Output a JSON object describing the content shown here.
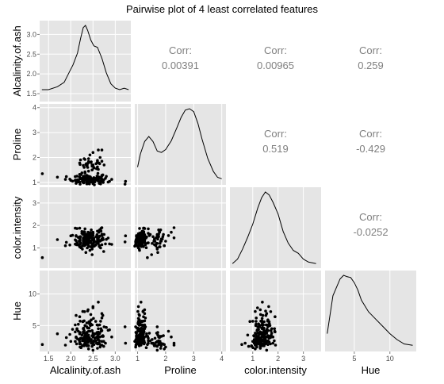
{
  "chart_data": {
    "type": "scatter",
    "title": "Pairwise plot of 4 least correlated features",
    "variables": [
      {
        "name": "Alcalinity.of.ash",
        "range": [
          1.3,
          3.35
        ],
        "ticks": [
          1.5,
          2.0,
          2.5,
          3.0
        ],
        "tick_labels": [
          "1.5",
          "2.0",
          "2.5",
          "3.0"
        ]
      },
      {
        "name": "Proline",
        "range": [
          0.9,
          4.15
        ],
        "ticks": [
          1,
          2,
          3,
          4
        ],
        "tick_labels": [
          "1",
          "2",
          "3",
          "4"
        ]
      },
      {
        "name": "color.intensity",
        "range": [
          0.1,
          3.7
        ],
        "ticks": [
          1,
          2,
          3
        ],
        "tick_labels": [
          "1",
          "2",
          "3"
        ]
      },
      {
        "name": "Hue",
        "range": [
          0.9,
          13.7
        ],
        "ticks": [
          5,
          10
        ],
        "tick_labels": [
          "5",
          "10"
        ]
      }
    ],
    "correlations": [
      {
        "row": 0,
        "col": 1,
        "label": "Corr:",
        "value": "0.00391"
      },
      {
        "row": 0,
        "col": 2,
        "label": "Corr:",
        "value": "0.00965"
      },
      {
        "row": 0,
        "col": 3,
        "label": "Corr:",
        "value": "0.259"
      },
      {
        "row": 1,
        "col": 2,
        "label": "Corr:",
        "value": "0.519"
      },
      {
        "row": 1,
        "col": 3,
        "label": "Corr:",
        "value": "-0.429"
      },
      {
        "row": 2,
        "col": 3,
        "label": "Corr:",
        "value": "-0.0252"
      }
    ],
    "density": [
      {
        "variable": "Alcalinity.of.ash",
        "x": [
          1.35,
          1.5,
          1.7,
          1.85,
          1.95,
          2.05,
          2.15,
          2.22,
          2.28,
          2.33,
          2.38,
          2.45,
          2.52,
          2.6,
          2.7,
          2.8,
          2.9,
          3.0,
          3.1,
          3.2,
          3.3
        ],
        "y": [
          0.12,
          0.12,
          0.16,
          0.22,
          0.34,
          0.46,
          0.62,
          0.82,
          0.97,
          1.0,
          0.93,
          0.8,
          0.72,
          0.7,
          0.55,
          0.35,
          0.2,
          0.14,
          0.12,
          0.14,
          0.12
        ]
      },
      {
        "variable": "Proline",
        "x": [
          1.0,
          1.1,
          1.25,
          1.4,
          1.55,
          1.7,
          1.85,
          2.0,
          2.2,
          2.4,
          2.55,
          2.7,
          2.85,
          3.0,
          3.15,
          3.3,
          3.5,
          3.7,
          3.85,
          4.0
        ],
        "y": [
          0.2,
          0.38,
          0.55,
          0.62,
          0.55,
          0.42,
          0.4,
          0.44,
          0.56,
          0.74,
          0.88,
          0.98,
          1.0,
          0.96,
          0.8,
          0.58,
          0.32,
          0.14,
          0.06,
          0.04
        ]
      },
      {
        "variable": "color.intensity",
        "x": [
          0.2,
          0.4,
          0.6,
          0.8,
          1.0,
          1.2,
          1.35,
          1.5,
          1.65,
          1.8,
          2.0,
          2.2,
          2.4,
          2.6,
          2.8,
          3.0,
          3.2,
          3.5
        ],
        "y": [
          0.02,
          0.08,
          0.22,
          0.38,
          0.56,
          0.78,
          0.92,
          1.0,
          0.96,
          0.86,
          0.7,
          0.46,
          0.3,
          0.2,
          0.16,
          0.08,
          0.04,
          0.02
        ]
      },
      {
        "variable": "Hue",
        "x": [
          1.2,
          2,
          3,
          3.5,
          4,
          4.5,
          5,
          5.5,
          6,
          7,
          8,
          9,
          10,
          11,
          12,
          13.2
        ],
        "y": [
          0.2,
          0.72,
          0.95,
          1.0,
          0.98,
          0.97,
          0.9,
          0.8,
          0.66,
          0.5,
          0.4,
          0.3,
          0.2,
          0.12,
          0.06,
          0.04
        ]
      }
    ],
    "points": [
      [
        2.43,
        1.07,
        0.89,
        5.64
      ],
      [
        2.14,
        1.05,
        1.23,
        4.38
      ],
      [
        2.67,
        1.03,
        1.0,
        5.68
      ],
      [
        2.5,
        0.86,
        1.19,
        7.8
      ],
      [
        2.87,
        1.04,
        1.18,
        4.32
      ],
      [
        2.45,
        1.05,
        1.31,
        6.75
      ],
      [
        2.45,
        1.02,
        1.23,
        5.25
      ],
      [
        2.61,
        1.06,
        1.27,
        5.05
      ],
      [
        2.17,
        1.08,
        1.13,
        5.2
      ],
      [
        2.27,
        1.01,
        1.1,
        7.22
      ],
      [
        2.3,
        1.25,
        1.36,
        5.75
      ],
      [
        2.32,
        1.17,
        1.12,
        5.0
      ],
      [
        2.41,
        1.15,
        1.45,
        5.6
      ],
      [
        2.39,
        1.25,
        1.3,
        7.5
      ],
      [
        2.38,
        1.2,
        1.51,
        7.3
      ],
      [
        2.7,
        1.28,
        1.14,
        6.2
      ],
      [
        2.72,
        1.07,
        1.4,
        6.6
      ],
      [
        2.62,
        1.12,
        1.38,
        8.7
      ],
      [
        2.48,
        1.12,
        1.42,
        5.1
      ],
      [
        2.56,
        1.09,
        1.13,
        5.65
      ],
      [
        2.28,
        1.23,
        1.43,
        4.5
      ],
      [
        2.65,
        0.96,
        1.1,
        3.8
      ],
      [
        2.36,
        0.94,
        1.28,
        3.93
      ],
      [
        2.52,
        1.07,
        1.43,
        3.52
      ],
      [
        2.61,
        1.07,
        1.26,
        3.58
      ],
      [
        3.22,
        0.93,
        1.27,
        4.8
      ],
      [
        2.62,
        1.15,
        1.45,
        3.95
      ],
      [
        2.14,
        1.25,
        1.86,
        4.5
      ],
      [
        2.8,
        1.24,
        1.38,
        4.7
      ],
      [
        2.21,
        1.15,
        1.32,
        5.7
      ],
      [
        2.7,
        1.25,
        1.55,
        6.9
      ],
      [
        2.36,
        1.17,
        1.53,
        3.84
      ],
      [
        2.36,
        1.02,
        1.38,
        5.4
      ],
      [
        2.7,
        1.13,
        1.61,
        4.2
      ],
      [
        2.65,
        1.17,
        1.53,
        5.1
      ],
      [
        2.41,
        1.01,
        1.36,
        4.6
      ],
      [
        2.84,
        1.01,
        1.44,
        4.25
      ],
      [
        2.55,
        1.11,
        1.28,
        3.7
      ],
      [
        2.1,
        1.09,
        1.36,
        5.1
      ],
      [
        2.51,
        1.03,
        1.37,
        6.13
      ],
      [
        2.31,
        1.19,
        1.71,
        7.2
      ],
      [
        2.12,
        0.86,
        1.52,
        6.6
      ],
      [
        2.59,
        1.25,
        1.59,
        5.1
      ],
      [
        2.29,
        0.98,
        1.44,
        4.6
      ],
      [
        2.1,
        1.23,
        1.88,
        4.0
      ],
      [
        2.44,
        1.22,
        1.68,
        5.0
      ],
      [
        2.28,
        1.2,
        1.59,
        5.7
      ],
      [
        2.12,
        0.96,
        1.55,
        3.2
      ],
      [
        2.4,
        1.07,
        1.45,
        4.1
      ],
      [
        2.27,
        1.08,
        1.65,
        5.6
      ],
      [
        2.04,
        1.05,
        1.56,
        4.4
      ],
      [
        2.6,
        0.88,
        1.75,
        3.8
      ],
      [
        2.42,
        1.09,
        1.66,
        5.3
      ],
      [
        2.68,
        1.18,
        1.75,
        4.5
      ],
      [
        2.25,
        1.16,
        1.73,
        3.5
      ],
      [
        2.46,
        1.06,
        1.6,
        5.9
      ],
      [
        2.3,
        1.22,
        1.72,
        4.2
      ],
      [
        2.68,
        1.07,
        1.87,
        4.1
      ],
      [
        2.5,
        1.03,
        1.63,
        8.0
      ],
      [
        2.2,
        1.21,
        1.88,
        6.4
      ],
      [
        1.36,
        1.35,
        0.57,
        2.0
      ],
      [
        2.23,
        1.31,
        1.01,
        1.5
      ],
      [
        2.32,
        1.38,
        1.23,
        2.2
      ],
      [
        2.42,
        1.23,
        1.47,
        3.1
      ],
      [
        2.26,
        1.04,
        1.09,
        2.6
      ],
      [
        2.22,
        1.15,
        1.22,
        3.0
      ],
      [
        2.28,
        1.06,
        1.36,
        2.8
      ],
      [
        2.2,
        1.21,
        1.31,
        2.8
      ],
      [
        2.74,
        0.86,
        0.84,
        1.7
      ],
      [
        1.98,
        1.13,
        1.13,
        3.6
      ],
      [
        2.1,
        1.07,
        1.17,
        2.5
      ],
      [
        2.21,
        0.93,
        1.16,
        1.6
      ],
      [
        1.7,
        1.21,
        1.37,
        3.7
      ],
      [
        1.9,
        1.23,
        1.25,
        3.1
      ],
      [
        2.46,
        1.16,
        1.48,
        2.5
      ],
      [
        1.88,
        1.12,
        1.1,
        1.9
      ],
      [
        2.5,
        1.14,
        1.33,
        3.8
      ],
      [
        2.0,
        1.08,
        1.54,
        2.5
      ],
      [
        2.42,
        0.94,
        1.23,
        2.8
      ],
      [
        3.23,
        1.04,
        1.54,
        2.2
      ],
      [
        2.73,
        1.0,
        1.37,
        3.3
      ],
      [
        2.13,
        1.08,
        1.14,
        2.1
      ],
      [
        2.39,
        1.15,
        1.16,
        2.9
      ],
      [
        2.17,
        1.02,
        1.47,
        4.1
      ],
      [
        2.29,
        1.05,
        1.28,
        3.0
      ],
      [
        2.78,
        1.16,
        1.18,
        2.2
      ],
      [
        2.3,
        1.23,
        1.36,
        2.6
      ],
      [
        2.38,
        1.14,
        1.36,
        4.6
      ],
      [
        2.32,
        1.25,
        1.29,
        2.3
      ],
      [
        2.4,
        1.14,
        1.06,
        2.8
      ],
      [
        2.4,
        1.1,
        1.47,
        3.5
      ],
      [
        2.36,
        0.96,
        1.4,
        3.4
      ],
      [
        2.25,
        1.38,
        1.65,
        3.0
      ],
      [
        2.2,
        1.02,
        1.34,
        2.1
      ],
      [
        2.53,
        0.9,
        1.08,
        2.5
      ],
      [
        2.64,
        0.88,
        1.31,
        3.7
      ],
      [
        2.19,
        1.03,
        1.31,
        2.7
      ],
      [
        2.61,
        1.36,
        1.22,
        3.3
      ],
      [
        2.7,
        1.05,
        1.35,
        2.5
      ],
      [
        2.35,
        1.0,
        1.47,
        2.9
      ],
      [
        2.72,
        1.07,
        1.4,
        3.4
      ],
      [
        2.35,
        1.1,
        1.42,
        3.2
      ],
      [
        2.2,
        1.32,
        1.49,
        3.7
      ],
      [
        2.15,
        1.1,
        1.22,
        2.9
      ],
      [
        2.92,
        1.12,
        1.16,
        3.2
      ],
      [
        2.5,
        0.95,
        1.36,
        2.0
      ],
      [
        2.59,
        1.11,
        1.27,
        3.9
      ],
      [
        2.64,
        1.21,
        1.06,
        2.2
      ],
      [
        2.5,
        1.09,
        1.65,
        2.4
      ],
      [
        2.31,
        1.09,
        1.6,
        3.2
      ],
      [
        2.32,
        1.38,
        1.85,
        2.6
      ],
      [
        2.39,
        1.0,
        1.49,
        2.3
      ],
      [
        2.3,
        1.15,
        1.45,
        2.7
      ],
      [
        2.12,
        1.09,
        1.32,
        3.1
      ],
      [
        2.36,
        1.28,
        1.2,
        4.8
      ],
      [
        2.62,
        1.1,
        1.37,
        4.5
      ],
      [
        2.48,
        1.02,
        1.04,
        3.4
      ],
      [
        2.39,
        1.13,
        1.19,
        3.0
      ],
      [
        2.61,
        1.23,
        1.24,
        2.1
      ],
      [
        2.52,
        1.19,
        1.39,
        2.6
      ],
      [
        2.56,
        1.16,
        1.14,
        3.1
      ],
      [
        2.72,
        1.3,
        1.44,
        3.3
      ],
      [
        2.42,
        1.19,
        1.24,
        2.7
      ],
      [
        2.64,
        0.96,
        1.5,
        3.8
      ],
      [
        2.38,
        0.95,
        1.22,
        2.4
      ],
      [
        2.5,
        1.03,
        1.06,
        3.3
      ],
      [
        2.45,
        1.09,
        1.46,
        2.6
      ],
      [
        2.67,
        0.94,
        1.33,
        1.9
      ],
      [
        2.64,
        1.03,
        1.1,
        2.6
      ],
      [
        2.48,
        1.1,
        1.17,
        4.2
      ],
      [
        2.46,
        0.88,
        1.5,
        2.8
      ],
      [
        2.36,
        1.06,
        1.23,
        3.0
      ],
      [
        2.74,
        1.1,
        1.6,
        2.5
      ],
      [
        2.31,
        1.2,
        1.66,
        3.3
      ],
      [
        2.28,
        1.1,
        1.3,
        4.0
      ],
      [
        2.54,
        1.02,
        1.26,
        3.0
      ],
      [
        2.3,
        1.11,
        1.46,
        2.8
      ],
      [
        2.48,
        1.5,
        0.7,
        2.2
      ],
      [
        2.26,
        1.06,
        0.95,
        1.8
      ],
      [
        2.37,
        1.7,
        1.0,
        2.5
      ],
      [
        2.38,
        1.6,
        1.15,
        1.8
      ],
      [
        2.5,
        1.7,
        1.2,
        2.4
      ],
      [
        2.48,
        1.7,
        0.95,
        1.7
      ],
      [
        2.34,
        1.72,
        0.8,
        3.5
      ],
      [
        2.35,
        1.75,
        1.6,
        2.0
      ],
      [
        2.6,
        1.8,
        1.2,
        3.3
      ],
      [
        2.2,
        1.78,
        1.05,
        2.4
      ],
      [
        2.3,
        1.95,
        1.1,
        2.0
      ],
      [
        2.4,
        1.84,
        1.3,
        1.8
      ],
      [
        2.22,
        1.9,
        1.5,
        2.1
      ],
      [
        2.7,
        1.85,
        1.4,
        3.3
      ],
      [
        2.63,
        1.78,
        1.7,
        2.1
      ],
      [
        2.45,
        1.8,
        1.05,
        2.5
      ],
      [
        2.4,
        1.95,
        1.1,
        1.3
      ],
      [
        2.5,
        1.7,
        1.55,
        1.1
      ],
      [
        2.6,
        1.82,
        1.3,
        1.4
      ],
      [
        2.3,
        1.6,
        1.4,
        1.8
      ],
      [
        2.52,
        1.58,
        1.3,
        2.0
      ],
      [
        2.58,
        1.55,
        1.5,
        2.2
      ],
      [
        2.4,
        1.45,
        1.6,
        2.6
      ],
      [
        2.62,
        1.52,
        1.2,
        2.8
      ],
      [
        2.6,
        1.62,
        1.3,
        3.0
      ],
      [
        2.32,
        1.42,
        1.55,
        3.8
      ],
      [
        2.48,
        1.65,
        1.1,
        2.3
      ],
      [
        2.65,
        1.75,
        1.8,
        3.2
      ],
      [
        2.52,
        1.6,
        1.3,
        2.0
      ],
      [
        2.36,
        1.66,
        1.45,
        1.8
      ],
      [
        2.28,
        1.68,
        1.2,
        3.8
      ],
      [
        2.75,
        1.7,
        1.6,
        4.8
      ],
      [
        2.21,
        1.72,
        1.4,
        3.9
      ],
      [
        2.57,
        1.75,
        1.5,
        2.6
      ],
      [
        2.39,
        1.78,
        1.7,
        3.1
      ],
      [
        2.46,
        1.82,
        1.8,
        2.2
      ],
      [
        2.6,
        1.88,
        1.4,
        2.1
      ],
      [
        2.32,
        1.92,
        1.6,
        3.4
      ],
      [
        2.66,
        2.0,
        1.3,
        1.6
      ],
      [
        2.43,
        2.1,
        1.55,
        4.1
      ],
      [
        2.5,
        2.2,
        1.7,
        3.2
      ],
      [
        2.62,
        2.3,
        1.45,
        2.2
      ],
      [
        2.7,
        2.3,
        1.9,
        1.9
      ]
    ]
  },
  "colors": {
    "panel": "#e5e5e5",
    "grid": "#ffffff",
    "point": "#000000",
    "corr_text": "#7f7f7f"
  }
}
